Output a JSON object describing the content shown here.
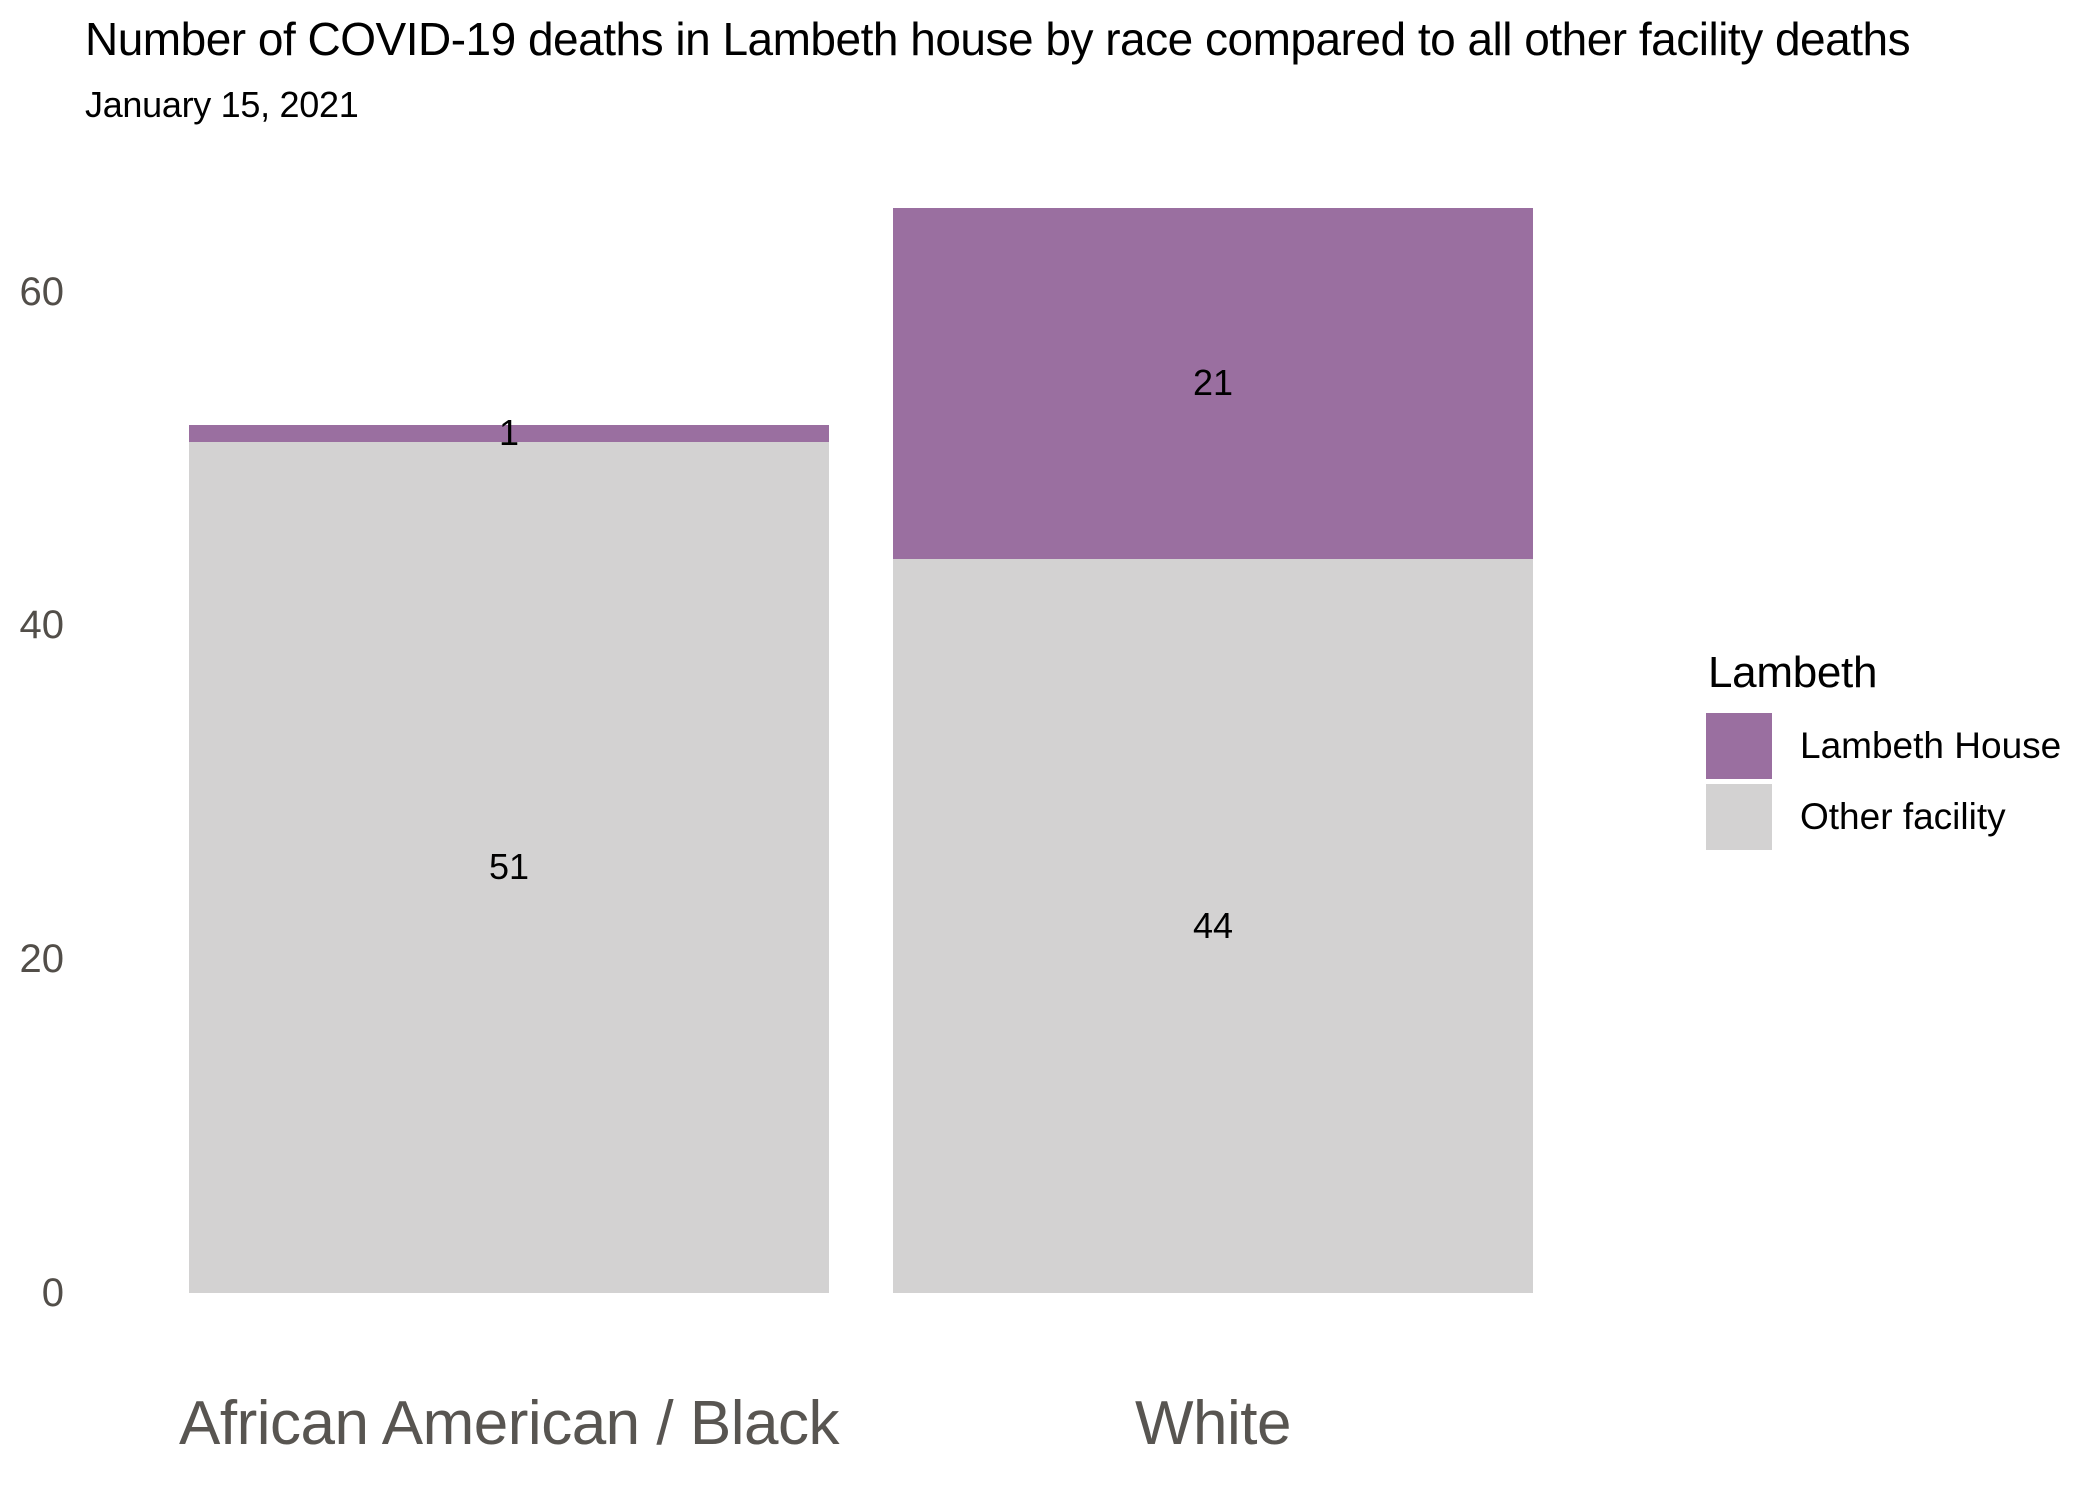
{
  "header": {
    "title": "Number of COVID-19 deaths in Lambeth house by race compared to all other facility deaths",
    "subtitle": "January 15, 2021"
  },
  "legend": {
    "title": "Lambeth",
    "items": [
      {
        "label": "Lambeth House",
        "color": "#9a6fa0"
      },
      {
        "label": "Other facility",
        "color": "#d3d2d2"
      }
    ]
  },
  "colors": {
    "lambeth_house": "#9a6fa0",
    "other_facility": "#d3d2d2",
    "axis_text_y": "#524e49",
    "axis_text_x": "#585551",
    "background": "#ffffff",
    "label_text": "#000000"
  },
  "chart_data": {
    "type": "bar",
    "stacked": true,
    "title": "Number of COVID-19 deaths in Lambeth house by race compared to all other facility deaths",
    "subtitle": "January 15, 2021",
    "categories": [
      "African American / Black",
      "White"
    ],
    "series": [
      {
        "name": "Lambeth House",
        "values": [
          1,
          21
        ],
        "color": "#9a6fa0"
      },
      {
        "name": "Other facility",
        "values": [
          51,
          44
        ],
        "color": "#d3d2d2"
      }
    ],
    "stack_order_bottom_to_top": [
      "Other facility",
      "Lambeth House"
    ],
    "totals": [
      52,
      65
    ],
    "bar_value_labels": [
      {
        "category": "African American / Black",
        "Lambeth House": 1,
        "Other facility": 51
      },
      {
        "category": "White",
        "Lambeth House": 21,
        "Other facility": 44
      }
    ],
    "xlabel": "",
    "ylabel": "",
    "yticks": [
      0,
      20,
      40,
      60
    ],
    "ylim": [
      0,
      65
    ],
    "grid": false,
    "axis_lines": false,
    "legend_title": "Lambeth",
    "legend_position": "right"
  }
}
